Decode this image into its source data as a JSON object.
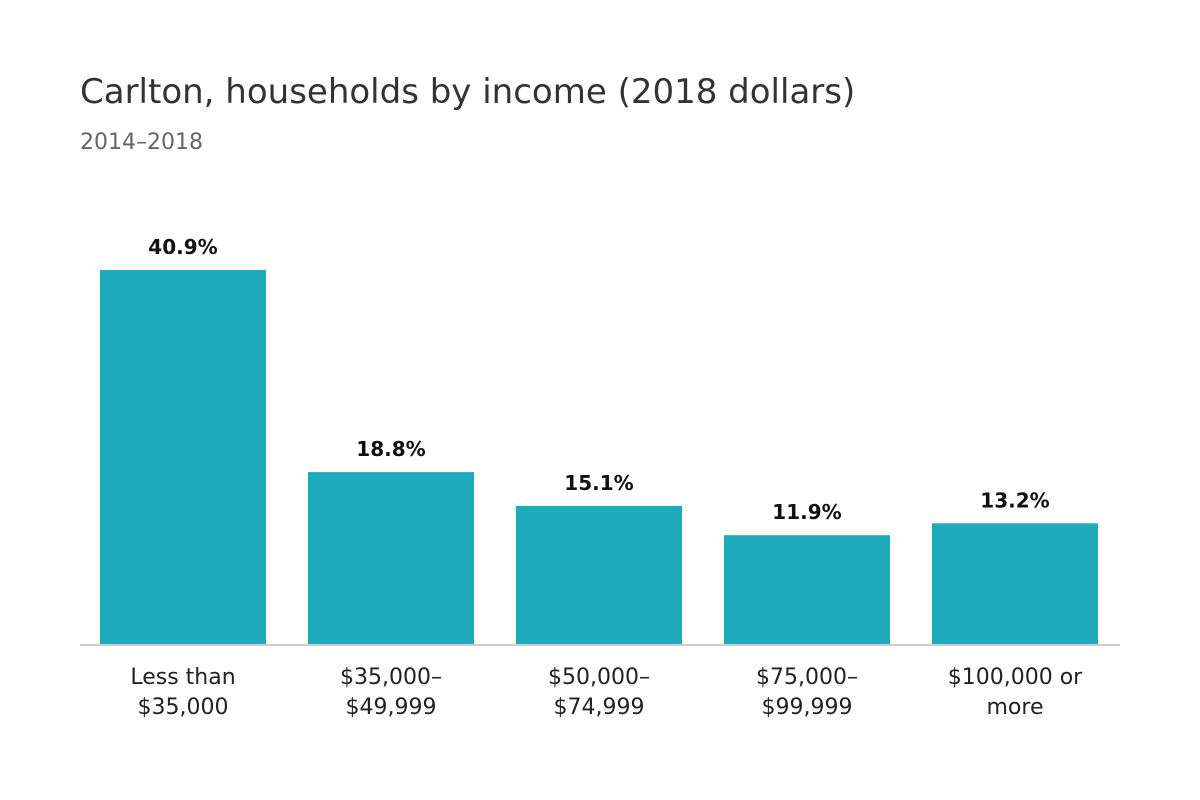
{
  "chart_data": {
    "type": "bar",
    "title": "Carlton, households by income (2018 dollars)",
    "subtitle": "2014–2018",
    "categories": [
      [
        "Less than",
        "$35,000"
      ],
      [
        "$35,000–",
        "$49,999"
      ],
      [
        "$50,000–",
        "$74,999"
      ],
      [
        "$75,000–",
        "$99,999"
      ],
      [
        "$100,000 or",
        "more"
      ]
    ],
    "values": [
      40.9,
      18.8,
      15.1,
      11.9,
      13.2
    ],
    "value_labels": [
      "40.9%",
      "18.8%",
      "15.1%",
      "11.9%",
      "13.2%"
    ],
    "xlabel": "",
    "ylabel": "",
    "ylim": [
      0,
      40.9
    ],
    "grid": false,
    "bar_color": "#20abbc",
    "baseline_color": "#cccccc"
  }
}
